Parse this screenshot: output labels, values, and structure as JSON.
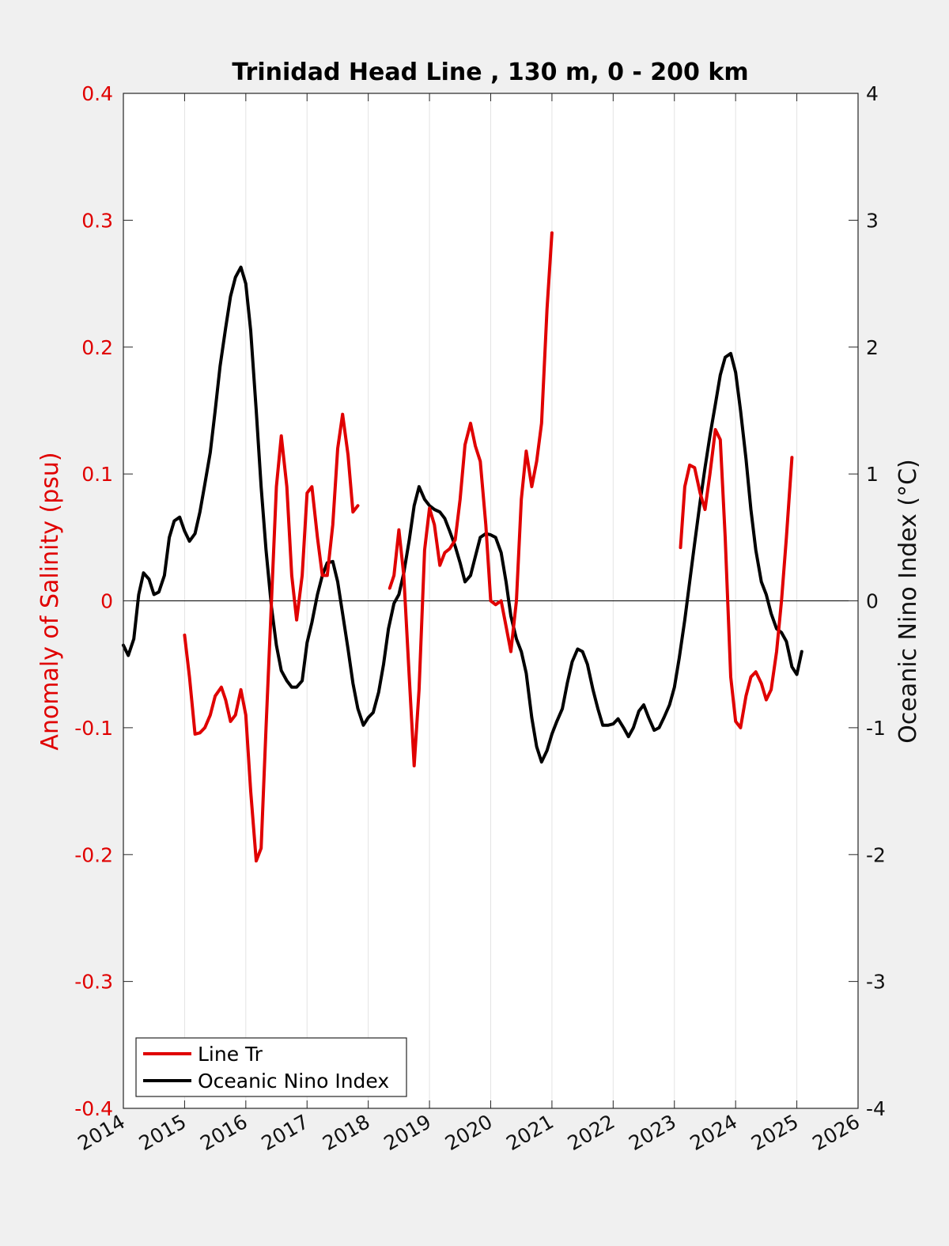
{
  "chart_data": {
    "type": "line",
    "title": "Trinidad Head Line , 130 m, 0 - 200 km",
    "ylabel_left": "Anomaly of Salinity (psu)",
    "ylabel_right": "Oceanic Nino Index (°C)",
    "xlim": [
      2014,
      2026
    ],
    "ylim_left": [
      -0.4,
      0.4
    ],
    "ylim_right": [
      -4,
      4
    ],
    "x_ticks": [
      "2014",
      "2015",
      "2016",
      "2017",
      "2018",
      "2019",
      "2020",
      "2021",
      "2022",
      "2023",
      "2024",
      "2025",
      "2026"
    ],
    "y_left_ticks": [
      "-0.4",
      "-0.3",
      "-0.2",
      "-0.1",
      "0",
      "0.1",
      "0.2",
      "0.3",
      "0.4"
    ],
    "y_right_ticks": [
      "-4",
      "-3",
      "-2",
      "-1",
      "0",
      "1",
      "2",
      "3",
      "4"
    ],
    "grid": "vertical",
    "legend_position": "bottom-left",
    "colors": {
      "salinity": "#e00000",
      "oni": "#000000"
    },
    "series": [
      {
        "name": "Line Tr",
        "axis": "left",
        "segments": [
          [
            [
              2015.0,
              -0.027
            ],
            [
              2015.08,
              -0.06
            ],
            [
              2015.17,
              -0.105
            ],
            [
              2015.25,
              -0.104
            ],
            [
              2015.33,
              -0.1
            ],
            [
              2015.42,
              -0.09
            ],
            [
              2015.5,
              -0.075
            ],
            [
              2015.6,
              -0.068
            ],
            [
              2015.67,
              -0.078
            ],
            [
              2015.75,
              -0.095
            ],
            [
              2015.83,
              -0.09
            ],
            [
              2015.92,
              -0.07
            ],
            [
              2016.0,
              -0.09
            ],
            [
              2016.08,
              -0.15
            ],
            [
              2016.17,
              -0.205
            ],
            [
              2016.25,
              -0.195
            ],
            [
              2016.33,
              -0.1
            ],
            [
              2016.42,
              0.0
            ],
            [
              2016.5,
              0.09
            ],
            [
              2016.58,
              0.13
            ],
            [
              2016.67,
              0.09
            ],
            [
              2016.75,
              0.02
            ],
            [
              2016.83,
              -0.015
            ],
            [
              2016.92,
              0.02
            ],
            [
              2017.0,
              0.085
            ],
            [
              2017.08,
              0.09
            ],
            [
              2017.17,
              0.05
            ],
            [
              2017.25,
              0.02
            ],
            [
              2017.33,
              0.02
            ],
            [
              2017.42,
              0.06
            ],
            [
              2017.5,
              0.12
            ],
            [
              2017.58,
              0.147
            ],
            [
              2017.67,
              0.115
            ],
            [
              2017.75,
              0.07
            ],
            [
              2017.83,
              0.075
            ]
          ],
          [
            [
              2018.35,
              0.01
            ],
            [
              2018.42,
              0.02
            ],
            [
              2018.5,
              0.056
            ],
            [
              2018.58,
              0.02
            ],
            [
              2018.67,
              -0.06
            ],
            [
              2018.75,
              -0.13
            ],
            [
              2018.83,
              -0.07
            ],
            [
              2018.92,
              0.04
            ],
            [
              2019.0,
              0.073
            ],
            [
              2019.08,
              0.06
            ],
            [
              2019.17,
              0.028
            ],
            [
              2019.25,
              0.038
            ],
            [
              2019.33,
              0.041
            ],
            [
              2019.42,
              0.048
            ],
            [
              2019.5,
              0.08
            ],
            [
              2019.58,
              0.123
            ],
            [
              2019.67,
              0.14
            ],
            [
              2019.75,
              0.122
            ],
            [
              2019.83,
              0.11
            ],
            [
              2019.92,
              0.06
            ],
            [
              2020.0,
              0.0
            ],
            [
              2020.08,
              -0.003
            ],
            [
              2020.17,
              0.0
            ],
            [
              2020.25,
              -0.02
            ],
            [
              2020.33,
              -0.04
            ],
            [
              2020.42,
              0.0
            ],
            [
              2020.5,
              0.08
            ],
            [
              2020.58,
              0.118
            ],
            [
              2020.67,
              0.09
            ],
            [
              2020.75,
              0.11
            ],
            [
              2020.83,
              0.14
            ],
            [
              2020.92,
              0.23
            ],
            [
              2021.0,
              0.29
            ]
          ],
          [
            [
              2023.1,
              0.042
            ],
            [
              2023.17,
              0.09
            ],
            [
              2023.25,
              0.107
            ],
            [
              2023.33,
              0.105
            ],
            [
              2023.42,
              0.085
            ],
            [
              2023.5,
              0.072
            ],
            [
              2023.58,
              0.1
            ],
            [
              2023.67,
              0.135
            ],
            [
              2023.75,
              0.127
            ],
            [
              2023.83,
              0.05
            ],
            [
              2023.92,
              -0.06
            ],
            [
              2024.0,
              -0.095
            ],
            [
              2024.08,
              -0.1
            ],
            [
              2024.17,
              -0.075
            ],
            [
              2024.25,
              -0.06
            ],
            [
              2024.33,
              -0.056
            ],
            [
              2024.42,
              -0.065
            ],
            [
              2024.5,
              -0.078
            ],
            [
              2024.58,
              -0.07
            ],
            [
              2024.67,
              -0.04
            ],
            [
              2024.75,
              0.0
            ],
            [
              2024.83,
              0.05
            ],
            [
              2024.92,
              0.113
            ]
          ]
        ]
      },
      {
        "name": "Oceanic Nino Index",
        "axis": "right",
        "segments": [
          [
            [
              2014.0,
              -0.35
            ],
            [
              2014.08,
              -0.43
            ],
            [
              2014.17,
              -0.3
            ],
            [
              2014.25,
              0.05
            ],
            [
              2014.33,
              0.22
            ],
            [
              2014.42,
              0.17
            ],
            [
              2014.5,
              0.05
            ],
            [
              2014.58,
              0.07
            ],
            [
              2014.67,
              0.2
            ],
            [
              2014.75,
              0.5
            ],
            [
              2014.83,
              0.63
            ],
            [
              2014.92,
              0.66
            ],
            [
              2015.0,
              0.55
            ],
            [
              2015.08,
              0.47
            ],
            [
              2015.17,
              0.53
            ],
            [
              2015.25,
              0.7
            ],
            [
              2015.33,
              0.92
            ],
            [
              2015.42,
              1.17
            ],
            [
              2015.5,
              1.5
            ],
            [
              2015.58,
              1.85
            ],
            [
              2015.67,
              2.15
            ],
            [
              2015.75,
              2.4
            ],
            [
              2015.83,
              2.55
            ],
            [
              2015.92,
              2.63
            ],
            [
              2016.0,
              2.5
            ],
            [
              2016.08,
              2.13
            ],
            [
              2016.17,
              1.5
            ],
            [
              2016.25,
              0.9
            ],
            [
              2016.33,
              0.4
            ],
            [
              2016.42,
              -0.05
            ],
            [
              2016.5,
              -0.35
            ],
            [
              2016.58,
              -0.55
            ],
            [
              2016.67,
              -0.63
            ],
            [
              2016.75,
              -0.68
            ],
            [
              2016.83,
              -0.68
            ],
            [
              2016.92,
              -0.63
            ],
            [
              2017.0,
              -0.33
            ],
            [
              2017.08,
              -0.17
            ],
            [
              2017.17,
              0.05
            ],
            [
              2017.25,
              0.2
            ],
            [
              2017.33,
              0.3
            ],
            [
              2017.42,
              0.31
            ],
            [
              2017.5,
              0.15
            ],
            [
              2017.58,
              -0.1
            ],
            [
              2017.67,
              -0.38
            ],
            [
              2017.75,
              -0.65
            ],
            [
              2017.83,
              -0.85
            ],
            [
              2017.92,
              -0.98
            ],
            [
              2018.0,
              -0.92
            ],
            [
              2018.08,
              -0.88
            ],
            [
              2018.17,
              -0.72
            ],
            [
              2018.25,
              -0.5
            ],
            [
              2018.33,
              -0.22
            ],
            [
              2018.42,
              -0.02
            ],
            [
              2018.5,
              0.05
            ],
            [
              2018.58,
              0.22
            ],
            [
              2018.67,
              0.48
            ],
            [
              2018.75,
              0.75
            ],
            [
              2018.83,
              0.9
            ],
            [
              2018.92,
              0.8
            ],
            [
              2019.0,
              0.75
            ],
            [
              2019.08,
              0.72
            ],
            [
              2019.17,
              0.7
            ],
            [
              2019.25,
              0.65
            ],
            [
              2019.33,
              0.55
            ],
            [
              2019.42,
              0.43
            ],
            [
              2019.5,
              0.3
            ],
            [
              2019.58,
              0.15
            ],
            [
              2019.67,
              0.2
            ],
            [
              2019.75,
              0.35
            ],
            [
              2019.83,
              0.5
            ],
            [
              2019.92,
              0.53
            ],
            [
              2020.0,
              0.52
            ],
            [
              2020.08,
              0.5
            ],
            [
              2020.17,
              0.38
            ],
            [
              2020.25,
              0.15
            ],
            [
              2020.33,
              -0.12
            ],
            [
              2020.42,
              -0.3
            ],
            [
              2020.5,
              -0.4
            ],
            [
              2020.58,
              -0.57
            ],
            [
              2020.67,
              -0.92
            ],
            [
              2020.75,
              -1.15
            ],
            [
              2020.83,
              -1.27
            ],
            [
              2020.92,
              -1.18
            ],
            [
              2021.0,
              -1.05
            ],
            [
              2021.08,
              -0.95
            ],
            [
              2021.17,
              -0.85
            ],
            [
              2021.25,
              -0.65
            ],
            [
              2021.33,
              -0.48
            ],
            [
              2021.42,
              -0.38
            ],
            [
              2021.5,
              -0.4
            ],
            [
              2021.58,
              -0.5
            ],
            [
              2021.67,
              -0.7
            ],
            [
              2021.75,
              -0.85
            ],
            [
              2021.83,
              -0.98
            ],
            [
              2021.92,
              -0.98
            ],
            [
              2022.0,
              -0.97
            ],
            [
              2022.08,
              -0.93
            ],
            [
              2022.17,
              -1.0
            ],
            [
              2022.25,
              -1.07
            ],
            [
              2022.33,
              -1.0
            ],
            [
              2022.42,
              -0.87
            ],
            [
              2022.5,
              -0.82
            ],
            [
              2022.58,
              -0.92
            ],
            [
              2022.67,
              -1.02
            ],
            [
              2022.75,
              -1.0
            ],
            [
              2022.83,
              -0.92
            ],
            [
              2022.92,
              -0.82
            ],
            [
              2023.0,
              -0.68
            ],
            [
              2023.08,
              -0.45
            ],
            [
              2023.17,
              -0.15
            ],
            [
              2023.25,
              0.15
            ],
            [
              2023.33,
              0.45
            ],
            [
              2023.42,
              0.78
            ],
            [
              2023.5,
              1.05
            ],
            [
              2023.58,
              1.3
            ],
            [
              2023.67,
              1.55
            ],
            [
              2023.75,
              1.78
            ],
            [
              2023.83,
              1.92
            ],
            [
              2023.92,
              1.95
            ],
            [
              2024.0,
              1.8
            ],
            [
              2024.08,
              1.5
            ],
            [
              2024.17,
              1.12
            ],
            [
              2024.25,
              0.72
            ],
            [
              2024.33,
              0.4
            ],
            [
              2024.42,
              0.15
            ],
            [
              2024.5,
              0.05
            ],
            [
              2024.58,
              -0.1
            ],
            [
              2024.67,
              -0.22
            ],
            [
              2024.75,
              -0.25
            ],
            [
              2024.83,
              -0.32
            ],
            [
              2024.92,
              -0.52
            ],
            [
              2025.0,
              -0.58
            ],
            [
              2025.08,
              -0.4
            ]
          ]
        ]
      }
    ]
  }
}
